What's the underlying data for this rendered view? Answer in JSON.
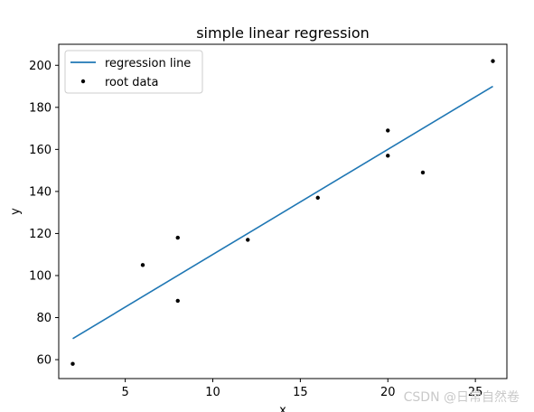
{
  "chart_data": {
    "type": "scatter",
    "title": "simple linear regression",
    "xlabel": "x",
    "ylabel": "y",
    "xlim": [
      1.2,
      26.8
    ],
    "ylim": [
      51,
      210
    ],
    "xticks": [
      5,
      10,
      15,
      20,
      25
    ],
    "yticks": [
      60,
      80,
      100,
      120,
      140,
      160,
      180,
      200
    ],
    "legend_position": "top-left",
    "series": [
      {
        "name": "regression line",
        "kind": "line",
        "color": "#1f77b4",
        "x": [
          2,
          26
        ],
        "y": [
          70,
          190
        ]
      },
      {
        "name": "root data",
        "kind": "scatter",
        "color": "#000000",
        "x": [
          2,
          6,
          8,
          8,
          12,
          16,
          20,
          20,
          22,
          26
        ],
        "y": [
          58,
          105,
          88,
          118,
          117,
          137,
          157,
          169,
          149,
          202
        ]
      }
    ]
  },
  "watermark": "CSDN @日常自然卷"
}
